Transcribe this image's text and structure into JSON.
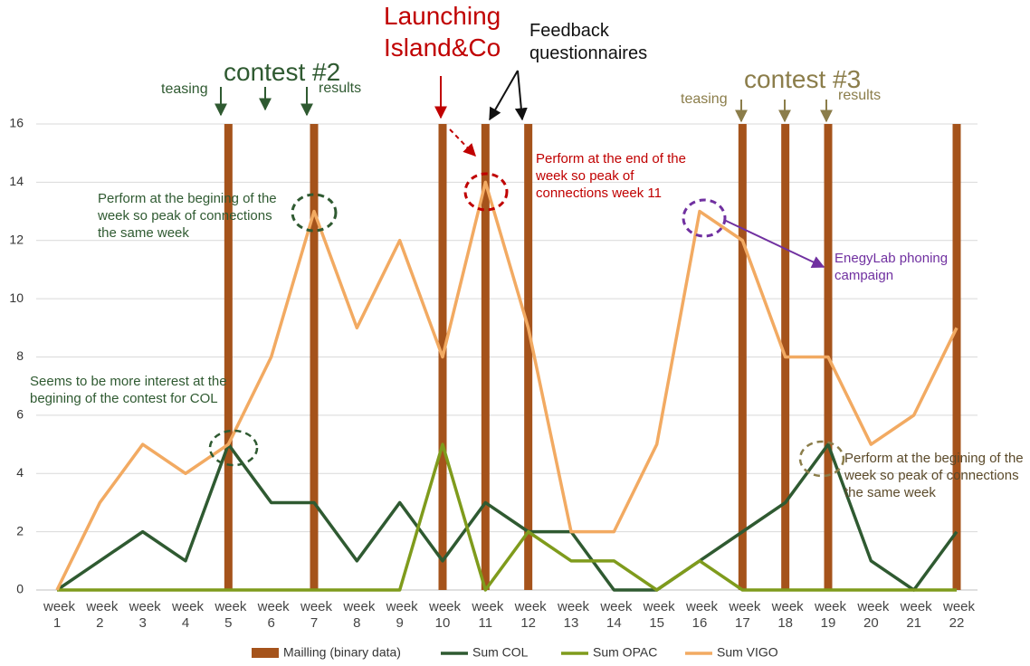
{
  "chart_data": {
    "type": "line",
    "categories": [
      "week 1",
      "week 2",
      "week 3",
      "week 4",
      "week 5",
      "week 6",
      "week 7",
      "week 8",
      "week 9",
      "week 10",
      "week 11",
      "week 12",
      "week 13",
      "week 14",
      "week 15",
      "week 16",
      "week 17",
      "week 18",
      "week 19",
      "week 20",
      "week 21",
      "week 22"
    ],
    "series": [
      {
        "name": "Mailling (binary data)",
        "type": "bar",
        "color": "#a5531b",
        "values": [
          0,
          0,
          0,
          0,
          16,
          0,
          16,
          0,
          0,
          16,
          16,
          16,
          0,
          0,
          0,
          0,
          16,
          16,
          16,
          0,
          0,
          16
        ]
      },
      {
        "name": "Sum COL",
        "color": "#2f5a31",
        "values": [
          0,
          1,
          2,
          1,
          5,
          3,
          3,
          1,
          3,
          1,
          3,
          2,
          2,
          0,
          0,
          1,
          2,
          3,
          5,
          1,
          0,
          2
        ]
      },
      {
        "name": "Sum OPAC",
        "color": "#7f9b1c",
        "values": [
          0,
          0,
          0,
          0,
          0,
          0,
          0,
          0,
          0,
          5,
          0,
          2,
          1,
          1,
          0,
          1,
          0,
          0,
          0,
          0,
          0,
          0
        ]
      },
      {
        "name": "Sum VIGO",
        "color": "#f2aa62",
        "values": [
          0,
          3,
          5,
          4,
          5,
          8,
          13,
          9,
          12,
          8,
          14,
          9,
          2,
          2,
          5,
          13,
          12,
          8,
          8,
          5,
          6,
          9
        ]
      }
    ],
    "ylim": [
      0,
      16
    ],
    "yticks": [
      0,
      2,
      4,
      6,
      8,
      10,
      12,
      14,
      16
    ],
    "grid": true,
    "legend": "bottom",
    "annotations": [
      {
        "text": "Launching Island&Co",
        "color": "#c00000"
      },
      {
        "text": "Feedback questionnaires",
        "color": "#111111"
      },
      {
        "text": "contest #2",
        "color": "#2f5a31"
      },
      {
        "text": "teasing",
        "color": "#2f5a31"
      },
      {
        "text": "results",
        "color": "#2f5a31"
      },
      {
        "text": "contest #3",
        "color": "#8b7d4a"
      },
      {
        "text": "teasing",
        "color": "#8b7d4a"
      },
      {
        "text": "results",
        "color": "#8b7d4a"
      },
      {
        "text": "Perform at the begining of the week so peak of connections the same week",
        "color": "#2f5a31"
      },
      {
        "text": "Perform at the end of the week so peak of connections week 11",
        "color": "#c00000"
      },
      {
        "text": "EnegyLab phoning campaign",
        "color": "#7030a0"
      },
      {
        "text": "Seems to be more interest at the begining of the contest for COL",
        "color": "#2f5a31"
      },
      {
        "text": "Perform at the begining of the week so peak of connections the same week",
        "color": "#5b4a2a"
      }
    ]
  }
}
